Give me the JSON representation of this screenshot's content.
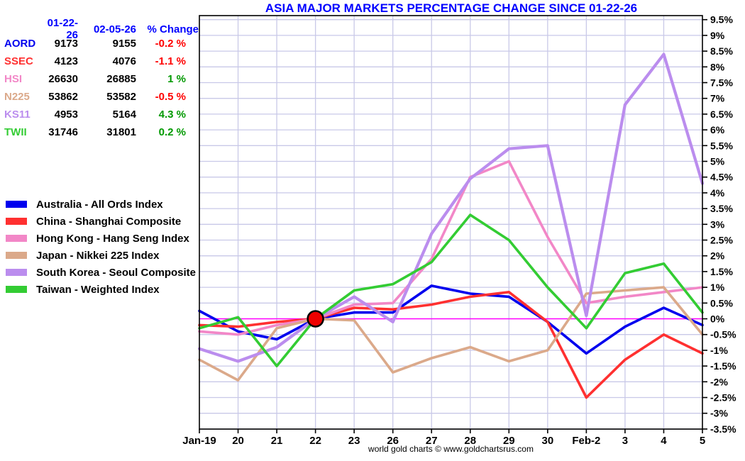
{
  "title": "ASIA MAJOR MARKETS PERCENTAGE CHANGE SINCE 01-22-26",
  "footer": "world gold charts © www.goldchartsrus.com",
  "colors": {
    "AORD": "#0000ee",
    "SSEC": "#ff3030",
    "HSI": "#f287c7",
    "N225": "#dba98a",
    "KS11": "#bb8dee",
    "TWII": "#33cc33",
    "title_blue": "#0000ff",
    "header_blue": "#0000ff",
    "positive": "#009900",
    "negative": "#ff0000",
    "zero_line": "#ff00ff",
    "grid": "#c9c9e8",
    "axis": "#000000",
    "marker_fill": "#ee0000",
    "marker_stroke": "#000000"
  },
  "table": {
    "headers": [
      "01-22-26",
      "02-05-26",
      "% Change"
    ],
    "rows": [
      {
        "symbol": "AORD",
        "v1": "9173",
        "v2": "9155",
        "change": "-0.2 %"
      },
      {
        "symbol": "SSEC",
        "v1": "4123",
        "v2": "4076",
        "change": "-1.1 %"
      },
      {
        "symbol": "HSI",
        "v1": "26630",
        "v2": "26885",
        "change": "1 %"
      },
      {
        "symbol": "N225",
        "v1": "53862",
        "v2": "53582",
        "change": "-0.5 %"
      },
      {
        "symbol": "KS11",
        "v1": "4953",
        "v2": "5164",
        "change": "4.3 %"
      },
      {
        "symbol": "TWII",
        "v1": "31746",
        "v2": "31801",
        "change": "0.2 %"
      }
    ]
  },
  "legend": [
    {
      "key": "AORD",
      "label": "Australia - All Ords Index"
    },
    {
      "key": "SSEC",
      "label": "China - Shanghai Composite"
    },
    {
      "key": "HSI",
      "label": "Hong Kong - Hang Seng Index"
    },
    {
      "key": "N225",
      "label": "Japan - Nikkei 225 Index"
    },
    {
      "key": "KS11",
      "label": "South Korea - Seoul Composite"
    },
    {
      "key": "TWII",
      "label": "Taiwan - Weighted Index"
    }
  ],
  "chart_data": {
    "type": "line",
    "title": "ASIA MAJOR MARKETS PERCENTAGE CHANGE SINCE 01-22-26",
    "categories": [
      "Jan-19",
      "20",
      "21",
      "22",
      "23",
      "26",
      "27",
      "28",
      "29",
      "30",
      "Feb-2",
      "3",
      "4",
      "5"
    ],
    "series": [
      {
        "name": "AORD",
        "label": "Australia - All Ords Index",
        "values": [
          0.25,
          -0.4,
          -0.65,
          0,
          0.2,
          0.2,
          1.05,
          0.8,
          0.7,
          -0.1,
          -1.1,
          -0.25,
          0.35,
          -0.2
        ]
      },
      {
        "name": "SSEC",
        "label": "China - Shanghai Composite",
        "values": [
          -0.2,
          -0.25,
          -0.1,
          0,
          0.35,
          0.3,
          0.45,
          0.7,
          0.85,
          -0.1,
          -2.5,
          -1.3,
          -0.5,
          -1.1
        ]
      },
      {
        "name": "HSI",
        "label": "Hong Kong - Hang Seng Index",
        "values": [
          -0.4,
          -0.5,
          -0.2,
          0,
          0.45,
          0.5,
          1.9,
          4.5,
          5.0,
          2.6,
          0.5,
          0.7,
          0.85,
          1.0
        ]
      },
      {
        "name": "N225",
        "label": "Japan - Nikkei 225 Index",
        "values": [
          -1.3,
          -1.95,
          -0.3,
          0,
          -0.05,
          -1.7,
          -1.25,
          -0.9,
          -1.35,
          -1.0,
          0.8,
          0.9,
          1.0,
          -0.5
        ]
      },
      {
        "name": "KS11",
        "label": "South Korea - Seoul Composite",
        "values": [
          -0.95,
          -1.35,
          -0.9,
          0,
          0.7,
          -0.1,
          2.7,
          4.45,
          5.4,
          5.5,
          0.1,
          6.8,
          8.4,
          4.3
        ]
      },
      {
        "name": "TWII",
        "label": "Taiwan - Weighted Index",
        "values": [
          -0.3,
          0.05,
          -1.5,
          0,
          0.9,
          1.1,
          1.8,
          3.3,
          2.5,
          1.0,
          -0.3,
          1.45,
          1.75,
          0.2
        ]
      }
    ],
    "ylim": [
      -3.5,
      9.5
    ],
    "ytick_step": 0.5,
    "y_ticks": [
      "9.5%",
      "9%",
      "8.5%",
      "8%",
      "7.5%",
      "7%",
      "6.5%",
      "6%",
      "5.5%",
      "5%",
      "4.5%",
      "4%",
      "3.5%",
      "3%",
      "2.5%",
      "2%",
      "1.5%",
      "1%",
      "0.5%",
      "0%",
      "-0.5%",
      "-1%",
      "-1.5%",
      "-2%",
      "-2.5%",
      "-3%",
      "-3.5%"
    ],
    "zero_baseline": true,
    "base_marker": {
      "category": "22",
      "value": 0
    },
    "grid": true,
    "legend_position": "left",
    "y_axis_side": "right"
  }
}
